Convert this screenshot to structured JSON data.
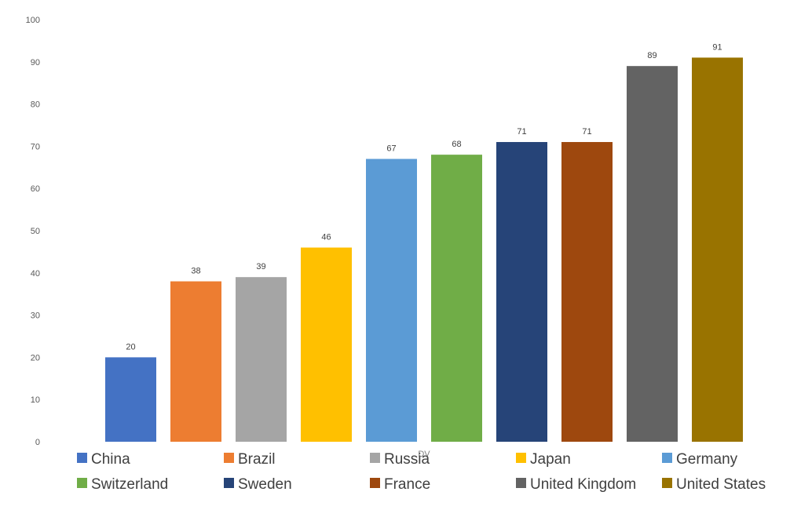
{
  "chart_data": {
    "type": "bar",
    "title": "",
    "xlabel": "DV",
    "ylabel": "",
    "ylim": [
      0,
      100
    ],
    "yticks": [
      0,
      10,
      20,
      30,
      40,
      50,
      60,
      70,
      80,
      90,
      100
    ],
    "grid": false,
    "legend_position": "bottom",
    "categories": [
      "China",
      "Brazil",
      "Russia",
      "Japan",
      "Germany",
      "Switzerland",
      "Sweden",
      "France",
      "United Kingdom",
      "United States"
    ],
    "values": [
      20,
      38,
      39,
      46,
      67,
      68,
      71,
      71,
      89,
      91
    ],
    "colors": [
      "#4472C4",
      "#ED7D31",
      "#A5A5A5",
      "#FFC000",
      "#5B9BD5",
      "#70AD47",
      "#264478",
      "#9E480E",
      "#636363",
      "#997300"
    ]
  }
}
